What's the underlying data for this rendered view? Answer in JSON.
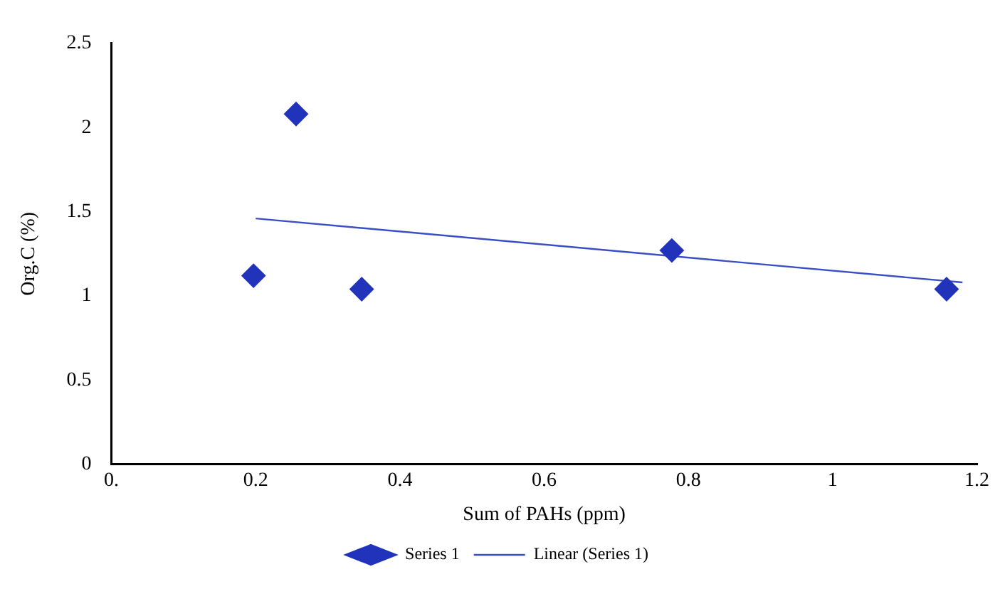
{
  "chart_data": {
    "type": "scatter",
    "xlabel": "Sum of PAHs (ppm)",
    "ylabel": "Org.C (%)",
    "xlim": [
      0,
      1.2
    ],
    "xticks": [
      {
        "value": 0,
        "label": "0."
      },
      0.2,
      0.4,
      0.6,
      0.8,
      1,
      1.2
    ],
    "ylim": [
      0,
      2.5
    ],
    "yticks": [
      0,
      0.5,
      1,
      1.5,
      2,
      2.5
    ],
    "grid": false,
    "legend": "bottom",
    "marker": "diamond",
    "series": [
      {
        "name": "Linear (Series 1)",
        "type": "line",
        "marker": "none",
        "color": "#3a4fc4",
        "x": [
          0.2,
          1.18
        ],
        "values": [
          1.46,
          1.08
        ]
      },
      {
        "name": "Series 1",
        "color": "#2233bb",
        "x": [
          0.197,
          0.256,
          0.347,
          0.777,
          1.158
        ],
        "values": [
          1.12,
          2.08,
          1.04,
          1.27,
          1.04
        ]
      }
    ]
  }
}
